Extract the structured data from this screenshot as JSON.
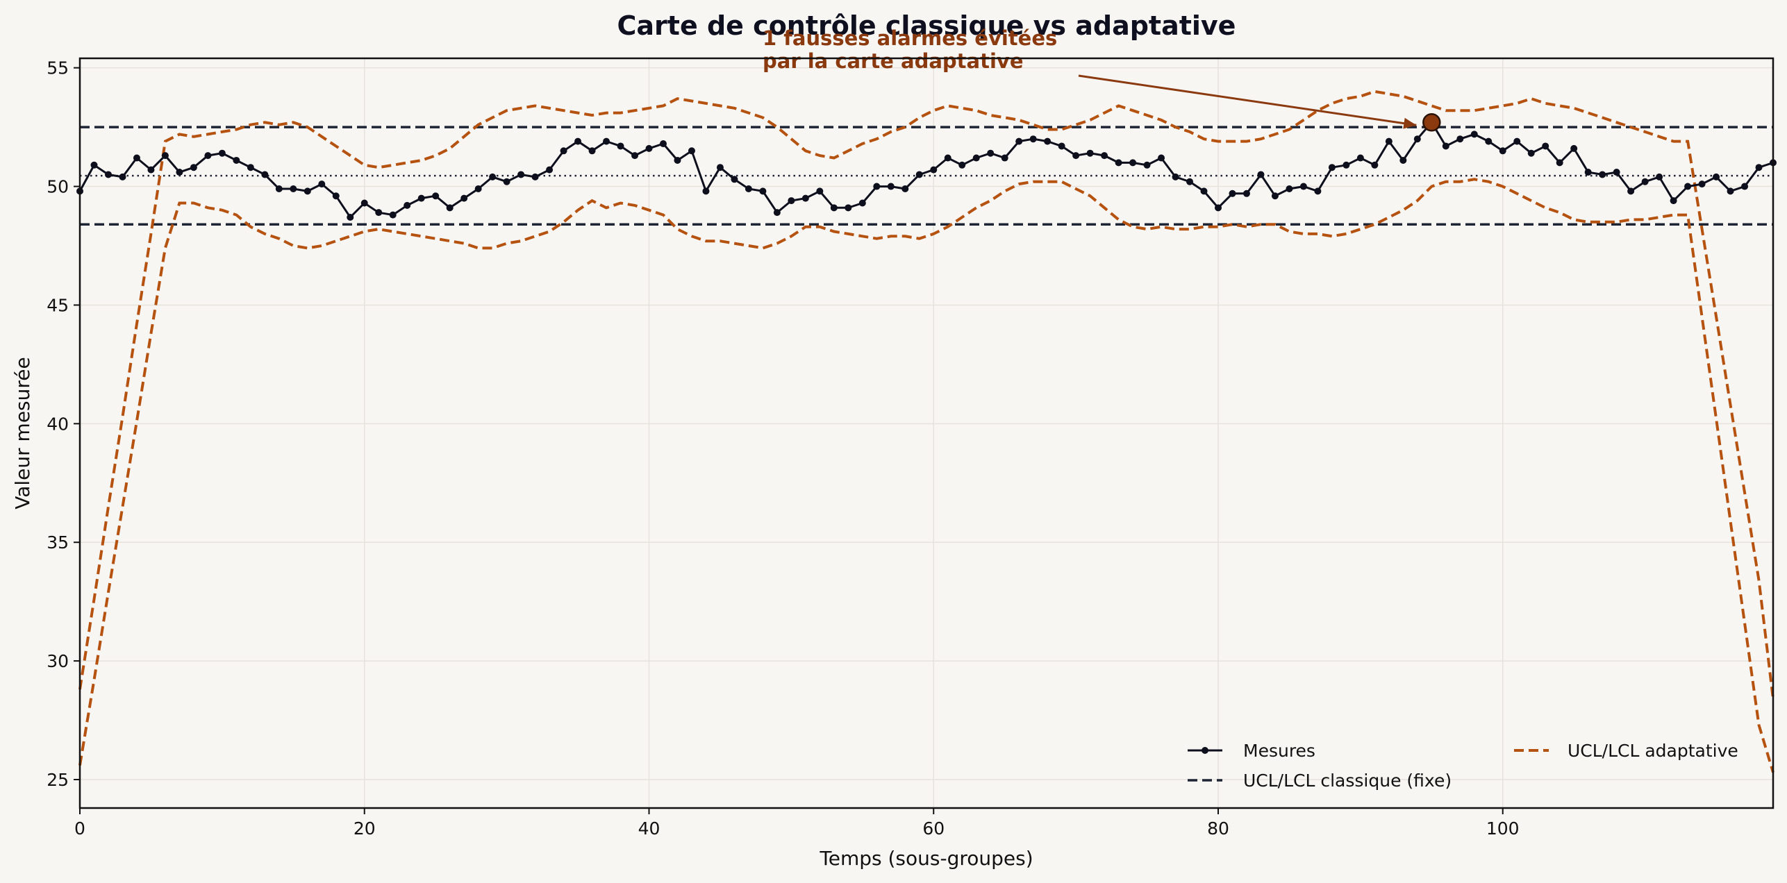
{
  "chart_data": {
    "type": "line",
    "title": "Carte de contrôle classique vs adaptative",
    "xlabel": "Temps (sous-groupes)",
    "ylabel": "Valeur mesurée",
    "xlim": [
      0,
      119
    ],
    "ylim": [
      23.8,
      55.4
    ],
    "xticks": [
      0,
      20,
      40,
      60,
      80,
      100
    ],
    "yticks": [
      25,
      30,
      35,
      40,
      45,
      50,
      55
    ],
    "grid": true,
    "legend": {
      "placement": "lower-right",
      "columns": 2
    },
    "colors": {
      "measures": "#0d0f1c",
      "classic": "#1d2433",
      "adaptive": "#b5520f",
      "annotation": "#8b3a0f",
      "background": "#f8f6f3"
    },
    "series": [
      {
        "name": "Mesures",
        "style": "solid-markers",
        "x": [
          0,
          1,
          2,
          3,
          4,
          5,
          6,
          7,
          8,
          9,
          10,
          11,
          12,
          13,
          14,
          15,
          16,
          17,
          18,
          19,
          20,
          21,
          22,
          23,
          24,
          25,
          26,
          27,
          28,
          29,
          30,
          31,
          32,
          33,
          34,
          35,
          36,
          37,
          38,
          39,
          40,
          41,
          42,
          43,
          44,
          45,
          46,
          47,
          48,
          49,
          50,
          51,
          52,
          53,
          54,
          55,
          56,
          57,
          58,
          59,
          60,
          61,
          62,
          63,
          64,
          65,
          66,
          67,
          68,
          69,
          70,
          71,
          72,
          73,
          74,
          75,
          76,
          77,
          78,
          79,
          80,
          81,
          82,
          83,
          84,
          85,
          86,
          87,
          88,
          89,
          90,
          91,
          92,
          93,
          94,
          95,
          96,
          97,
          98,
          99,
          100,
          101,
          102,
          103,
          104,
          105,
          106,
          107,
          108,
          109,
          110,
          111,
          112,
          113,
          114,
          115,
          116,
          117,
          118,
          119
        ],
        "y": [
          49.8,
          50.9,
          50.5,
          50.4,
          51.2,
          50.7,
          51.3,
          50.6,
          50.8,
          51.3,
          51.4,
          51.1,
          50.8,
          50.5,
          49.9,
          49.9,
          49.8,
          50.1,
          49.6,
          48.7,
          49.3,
          48.9,
          48.8,
          49.2,
          49.5,
          49.6,
          49.1,
          49.5,
          49.9,
          50.4,
          50.2,
          50.5,
          50.4,
          50.7,
          51.5,
          51.9,
          51.5,
          51.9,
          51.7,
          51.3,
          51.6,
          51.8,
          51.1,
          51.5,
          49.8,
          50.8,
          50.3,
          49.9,
          49.8,
          48.9,
          49.4,
          49.5,
          49.8,
          49.1,
          49.1,
          49.3,
          50.0,
          50.0,
          49.9,
          50.5,
          50.7,
          51.2,
          50.9,
          51.2,
          51.4,
          51.2,
          51.9,
          52.0,
          51.9,
          51.7,
          51.3,
          51.4,
          51.3,
          51.0,
          51.0,
          50.9,
          51.2,
          50.4,
          50.2,
          49.8,
          49.1,
          49.7,
          49.7,
          50.5,
          49.6,
          49.9,
          50.0,
          49.8,
          50.8,
          50.9,
          51.2,
          50.9,
          51.9,
          51.1,
          52.0,
          52.7,
          51.7,
          52.0,
          52.2,
          51.9,
          51.5,
          51.9,
          51.4,
          51.7,
          51.0,
          51.6,
          50.6,
          50.5,
          50.6,
          49.8,
          50.2,
          50.4,
          49.4,
          50.0,
          50.1,
          50.4,
          49.8,
          50.0,
          50.8,
          51.0
        ]
      },
      {
        "name": "UCL/LCL classique (fixe)",
        "style": "dashed",
        "ucl": 52.5,
        "lcl": 48.4,
        "center": 50.45
      },
      {
        "name": "UCL/LCL adaptative",
        "style": "dashed",
        "x": [
          0,
          1,
          2,
          3,
          4,
          5,
          6,
          7,
          8,
          9,
          10,
          11,
          12,
          13,
          14,
          15,
          16,
          17,
          18,
          19,
          20,
          21,
          22,
          23,
          24,
          25,
          26,
          27,
          28,
          29,
          30,
          31,
          32,
          33,
          34,
          35,
          36,
          37,
          38,
          39,
          40,
          41,
          42,
          43,
          44,
          45,
          46,
          47,
          48,
          49,
          50,
          51,
          52,
          53,
          54,
          55,
          56,
          57,
          58,
          59,
          60,
          61,
          62,
          63,
          64,
          65,
          66,
          67,
          68,
          69,
          70,
          71,
          72,
          73,
          74,
          75,
          76,
          77,
          78,
          79,
          80,
          81,
          82,
          83,
          84,
          85,
          86,
          87,
          88,
          89,
          90,
          91,
          92,
          93,
          94,
          95,
          96,
          97,
          98,
          99,
          100,
          101,
          102,
          103,
          104,
          105,
          106,
          107,
          108,
          109,
          110,
          111,
          112,
          113,
          114,
          115,
          116,
          117,
          118,
          119
        ],
        "ucl": [
          28.8,
          32.6,
          36.5,
          40.3,
          44.2,
          48.0,
          51.9,
          52.2,
          52.1,
          52.2,
          52.3,
          52.4,
          52.6,
          52.7,
          52.6,
          52.7,
          52.5,
          52.1,
          51.7,
          51.3,
          50.9,
          50.8,
          50.9,
          51.0,
          51.1,
          51.3,
          51.6,
          52.1,
          52.6,
          52.9,
          53.2,
          53.3,
          53.4,
          53.3,
          53.2,
          53.1,
          53.0,
          53.1,
          53.1,
          53.2,
          53.3,
          53.4,
          53.7,
          53.6,
          53.5,
          53.4,
          53.3,
          53.1,
          52.9,
          52.5,
          52.0,
          51.5,
          51.3,
          51.2,
          51.5,
          51.8,
          52.0,
          52.3,
          52.5,
          52.9,
          53.2,
          53.4,
          53.3,
          53.2,
          53.0,
          52.9,
          52.8,
          52.6,
          52.4,
          52.4,
          52.6,
          52.8,
          53.1,
          53.4,
          53.2,
          53.0,
          52.8,
          52.5,
          52.3,
          52.0,
          51.9,
          51.9,
          51.9,
          52.0,
          52.2,
          52.4,
          52.8,
          53.2,
          53.5,
          53.7,
          53.8,
          54.0,
          53.9,
          53.8,
          53.6,
          53.4,
          53.2,
          53.2,
          53.2,
          53.3,
          53.4,
          53.5,
          53.7,
          53.5,
          53.4,
          53.3,
          53.1,
          52.9,
          52.7,
          52.5,
          52.3,
          52.1,
          51.9,
          51.9,
          48.2,
          44.5,
          40.8,
          37.1,
          33.4,
          28.4
        ],
        "lcl": [
          25.6,
          29.2,
          32.9,
          36.5,
          40.1,
          43.8,
          47.4,
          49.3,
          49.3,
          49.1,
          49.0,
          48.8,
          48.3,
          48.0,
          47.8,
          47.5,
          47.4,
          47.5,
          47.7,
          47.9,
          48.1,
          48.2,
          48.1,
          48.0,
          47.9,
          47.8,
          47.7,
          47.6,
          47.4,
          47.4,
          47.6,
          47.7,
          47.9,
          48.1,
          48.5,
          49.0,
          49.4,
          49.1,
          49.3,
          49.2,
          49.0,
          48.8,
          48.2,
          47.9,
          47.7,
          47.7,
          47.6,
          47.5,
          47.4,
          47.6,
          47.9,
          48.3,
          48.3,
          48.1,
          48.0,
          47.9,
          47.8,
          47.9,
          47.9,
          47.8,
          48.0,
          48.3,
          48.7,
          49.1,
          49.4,
          49.8,
          50.1,
          50.2,
          50.2,
          50.2,
          49.9,
          49.6,
          49.1,
          48.6,
          48.3,
          48.2,
          48.3,
          48.2,
          48.2,
          48.3,
          48.3,
          48.4,
          48.3,
          48.4,
          48.4,
          48.1,
          48.0,
          48.0,
          47.9,
          48.0,
          48.2,
          48.4,
          48.7,
          49.0,
          49.4,
          50.0,
          50.2,
          50.2,
          50.3,
          50.2,
          50.0,
          49.7,
          49.4,
          49.1,
          48.9,
          48.6,
          48.5,
          48.5,
          48.5,
          48.6,
          48.6,
          48.7,
          48.8,
          48.8,
          44.5,
          40.2,
          35.9,
          31.6,
          27.3,
          25.3
        ]
      }
    ],
    "highlight_point": {
      "x": 95,
      "y": 52.7
    },
    "annotation": {
      "line1": "1 fausses alarmes évitées",
      "line2": "par la carte adaptative"
    }
  }
}
